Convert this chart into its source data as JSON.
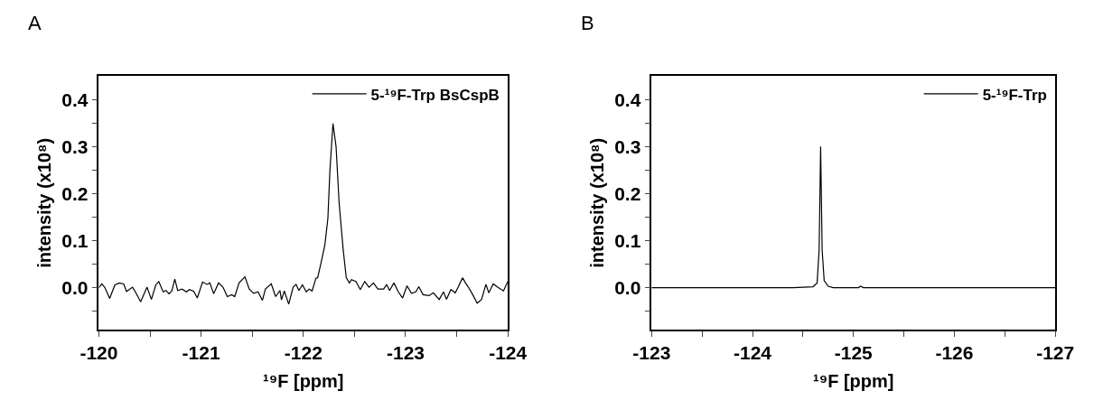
{
  "chart_data": [
    {
      "type": "line",
      "title": "A",
      "xlabel": "¹⁹F [ppm]",
      "ylabel": "intensity (x10⁸)",
      "legend": "top right",
      "xlim": [
        -120,
        -124
      ],
      "xticks": [
        -120,
        {
          "value": -120.5,
          "label": null
        },
        -121,
        {
          "value": -121.5,
          "label": null
        },
        -122,
        {
          "value": -122.5,
          "label": null
        },
        -123,
        {
          "value": -123.5,
          "label": null
        },
        -124
      ],
      "ylim": [
        -0.09,
        0.45
      ],
      "yticks": [
        {
          "value": -0.05,
          "label": null
        },
        {
          "value": 0,
          "label": "0.0"
        },
        {
          "value": 0.05,
          "label": null
        },
        0.1,
        {
          "value": 0.15,
          "label": null
        },
        0.2,
        {
          "value": 0.25,
          "label": null
        },
        0.3,
        {
          "value": 0.35,
          "label": null
        },
        0.4
      ],
      "x": [
        -120.0,
        -120.029,
        -120.057,
        -120.106,
        -120.157,
        -120.2,
        -120.243,
        -120.271,
        -120.329,
        -120.357,
        -120.409,
        -120.471,
        -120.514,
        -120.557,
        -120.586,
        -120.629,
        -120.657,
        -120.686,
        -120.714,
        -120.743,
        -120.771,
        -120.814,
        -120.857,
        -120.886,
        -120.929,
        -120.963,
        -121.014,
        -121.057,
        -121.086,
        -121.123,
        -121.171,
        -121.214,
        -121.257,
        -121.3,
        -121.329,
        -121.371,
        -121.429,
        -121.471,
        -121.514,
        -121.557,
        -121.6,
        -121.629,
        -121.686,
        -121.729,
        -121.771,
        -121.786,
        -121.814,
        -121.857,
        -121.9,
        -121.929,
        -121.957,
        -121.991,
        -122.029,
        -122.057,
        -122.086,
        -122.123,
        -122.14,
        -122.17,
        -122.21,
        -122.24,
        -122.26,
        -122.29,
        -122.32,
        -122.35,
        -122.39,
        -122.42,
        -122.45,
        -122.471,
        -122.514,
        -122.557,
        -122.6,
        -122.643,
        -122.686,
        -122.729,
        -122.786,
        -122.814,
        -122.843,
        -122.886,
        -122.929,
        -122.971,
        -123.014,
        -123.057,
        -123.1,
        -123.129,
        -123.171,
        -123.229,
        -123.271,
        -123.329,
        -123.371,
        -123.4,
        -123.443,
        -123.486,
        -123.514,
        -123.557,
        -123.586,
        -123.614,
        -123.657,
        -123.7,
        -123.743,
        -123.786,
        -123.814,
        -123.857,
        -123.9,
        -123.957,
        -124.0
      ],
      "series": [
        {
          "name": "5-¹⁹F-Trp BsCspB",
          "color": "#000000",
          "values": [
            0.0,
            0.008,
            0.001,
            -0.023,
            0.006,
            0.01,
            0.008,
            -0.008,
            0.001,
            -0.009,
            -0.03,
            0.001,
            -0.025,
            0.006,
            0.013,
            -0.009,
            -0.006,
            -0.013,
            -0.007,
            0.018,
            -0.006,
            -0.003,
            -0.009,
            -0.004,
            -0.008,
            -0.022,
            0.012,
            0.007,
            0.01,
            -0.013,
            0.01,
            0.001,
            -0.019,
            -0.015,
            -0.019,
            0.01,
            0.023,
            -0.003,
            -0.012,
            -0.009,
            -0.027,
            -0.003,
            0.008,
            -0.019,
            -0.006,
            -0.026,
            -0.007,
            -0.035,
            0.001,
            0.007,
            -0.006,
            0.006,
            -0.009,
            -0.003,
            -0.007,
            0.02,
            0.021,
            0.05,
            0.09,
            0.147,
            0.25,
            0.349,
            0.3,
            0.18,
            0.08,
            0.021,
            0.01,
            0.017,
            0.013,
            -0.004,
            0.013,
            0.001,
            0.01,
            -0.003,
            -0.003,
            0.007,
            -0.006,
            0.01,
            -0.009,
            -0.022,
            0.004,
            -0.012,
            -0.009,
            0.002,
            -0.015,
            -0.017,
            -0.011,
            -0.025,
            -0.009,
            -0.025,
            -0.004,
            -0.011,
            0.001,
            0.021,
            0.01,
            0.001,
            -0.015,
            -0.033,
            -0.025,
            0.007,
            -0.011,
            0.008,
            0.001,
            -0.007,
            0.013
          ]
        }
      ]
    },
    {
      "type": "line",
      "title": "B",
      "xlabel": "¹⁹F [ppm]",
      "ylabel": "intensity (x10⁸)",
      "legend": "top right",
      "xlim": [
        -123,
        -127
      ],
      "xticks": [
        -123,
        {
          "value": -123.5,
          "label": null
        },
        -124,
        {
          "value": -124.5,
          "label": null
        },
        -125,
        {
          "value": -125.5,
          "label": null
        },
        -126,
        {
          "value": -126.5,
          "label": null
        },
        -127
      ],
      "ylim": [
        -0.09,
        0.45
      ],
      "yticks": [
        {
          "value": -0.05,
          "label": null
        },
        {
          "value": 0,
          "label": "0.0"
        },
        {
          "value": 0.05,
          "label": null
        },
        0.1,
        {
          "value": 0.15,
          "label": null
        },
        0.2,
        {
          "value": 0.25,
          "label": null
        },
        0.3,
        {
          "value": 0.35,
          "label": null
        },
        0.4
      ],
      "x": [
        -123.0,
        -124.4,
        -124.6,
        -124.64,
        -124.66,
        -124.675,
        -124.69,
        -124.71,
        -124.75,
        -124.8,
        -125.05,
        -125.07,
        -125.1,
        -127.0
      ],
      "series": [
        {
          "name": "5-¹⁹F-Trp",
          "color": "#000000",
          "values": [
            0,
            0,
            0.002,
            0.01,
            0.08,
            0.3,
            0.08,
            0.015,
            0.003,
            0,
            0,
            0.003,
            0,
            0
          ]
        }
      ]
    }
  ]
}
